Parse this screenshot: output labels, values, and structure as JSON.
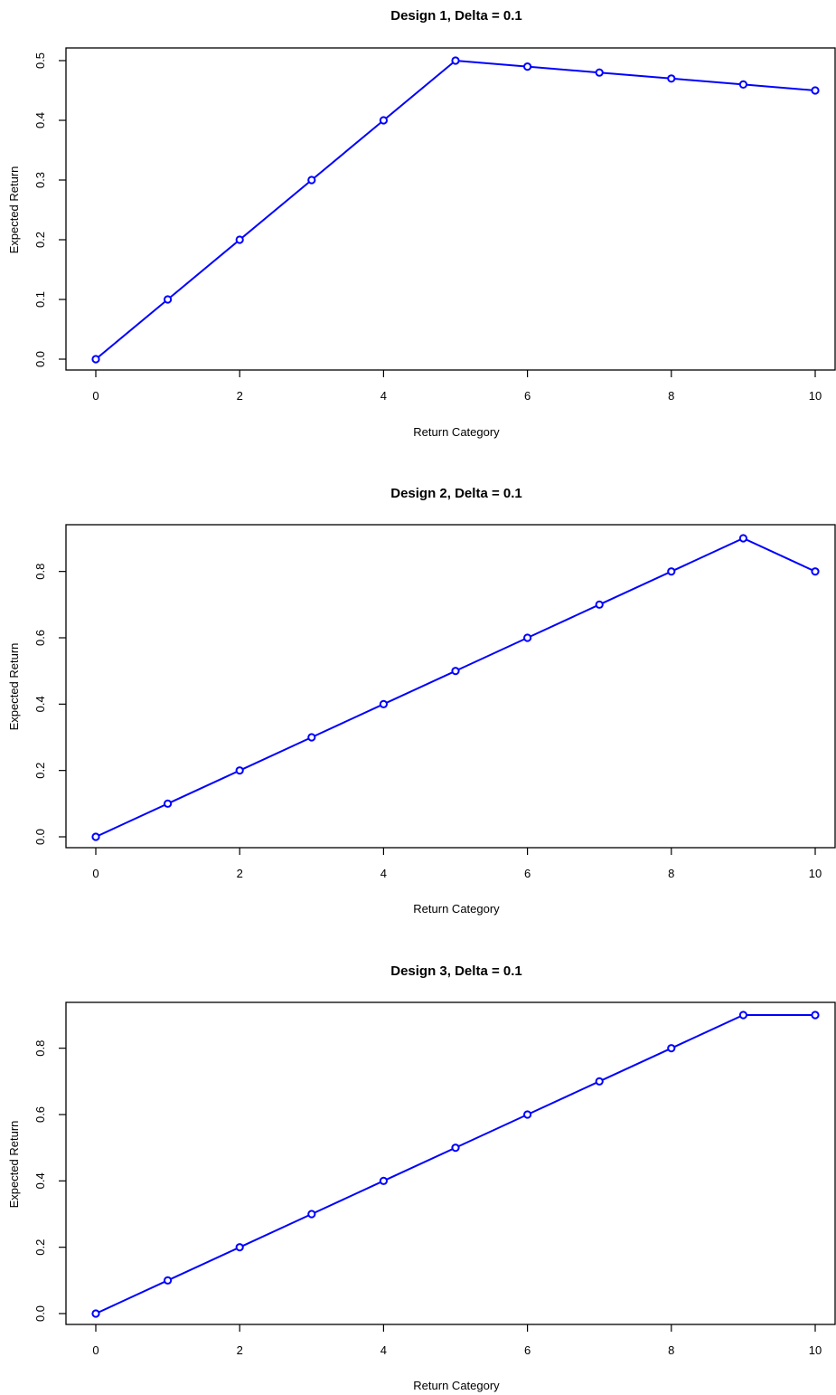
{
  "chart_data": [
    {
      "type": "line",
      "title": "Design 1, Delta = 0.1",
      "xlabel": "Return Category",
      "ylabel": "Expected Return",
      "x": [
        0,
        1,
        2,
        3,
        4,
        5,
        6,
        7,
        8,
        9,
        10
      ],
      "series": [
        {
          "values": [
            0.0,
            0.1,
            0.2,
            0.3,
            0.4,
            0.5,
            0.49,
            0.48,
            0.47,
            0.46,
            0.45
          ]
        }
      ],
      "xlim": [
        0,
        10
      ],
      "ylim": [
        0,
        0.5
      ],
      "x_ticks": [
        0,
        2,
        4,
        6,
        8,
        10
      ],
      "x_tick_labels": [
        "0",
        "2",
        "4",
        "6",
        "8",
        "10"
      ],
      "y_ticks": [
        0,
        0.1,
        0.2,
        0.3,
        0.4,
        0.5
      ],
      "y_tick_labels": [
        "0.0",
        "0.1",
        "0.2",
        "0.3",
        "0.4",
        "0.5"
      ],
      "color": "#0000ff",
      "marker": "open-circle",
      "grid": false,
      "legend": false
    },
    {
      "type": "line",
      "title": "Design 2, Delta = 0.1",
      "xlabel": "Return Category",
      "ylabel": "Expected Return",
      "x": [
        0,
        1,
        2,
        3,
        4,
        5,
        6,
        7,
        8,
        9,
        10
      ],
      "series": [
        {
          "values": [
            0.0,
            0.1,
            0.2,
            0.3,
            0.4,
            0.5,
            0.6,
            0.7,
            0.8,
            0.9,
            0.8
          ]
        }
      ],
      "xlim": [
        0,
        10
      ],
      "ylim": [
        0,
        0.9
      ],
      "x_ticks": [
        0,
        2,
        4,
        6,
        8,
        10
      ],
      "x_tick_labels": [
        "0",
        "2",
        "4",
        "6",
        "8",
        "10"
      ],
      "y_ticks": [
        0,
        0.2,
        0.4,
        0.6,
        0.8
      ],
      "y_tick_labels": [
        "0.0",
        "0.2",
        "0.4",
        "0.6",
        "0.8"
      ],
      "color": "#0000ff",
      "marker": "open-circle",
      "grid": false,
      "legend": false
    },
    {
      "type": "line",
      "title": "Design 3, Delta = 0.1",
      "xlabel": "Return Category",
      "ylabel": "Expected Return",
      "x": [
        0,
        1,
        2,
        3,
        4,
        5,
        6,
        7,
        8,
        9,
        10
      ],
      "series": [
        {
          "values": [
            0.0,
            0.1,
            0.2,
            0.3,
            0.4,
            0.5,
            0.6,
            0.7,
            0.8,
            0.9,
            0.9
          ]
        }
      ],
      "xlim": [
        0,
        10
      ],
      "ylim": [
        0,
        0.9
      ],
      "x_ticks": [
        0,
        2,
        4,
        6,
        8,
        10
      ],
      "x_tick_labels": [
        "0",
        "2",
        "4",
        "6",
        "8",
        "10"
      ],
      "y_ticks": [
        0,
        0.2,
        0.4,
        0.6,
        0.8
      ],
      "y_tick_labels": [
        "0.0",
        "0.2",
        "0.4",
        "0.6",
        "0.8"
      ],
      "color": "#0000ff",
      "marker": "open-circle",
      "grid": false,
      "legend": false
    }
  ]
}
